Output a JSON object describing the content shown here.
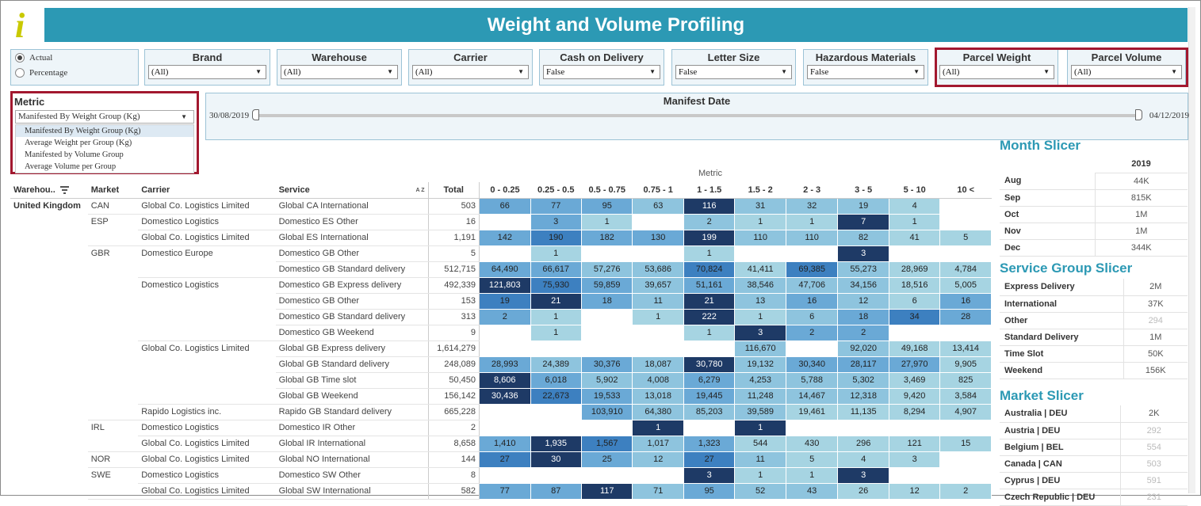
{
  "header": {
    "logo_glyph": "i",
    "title": "Weight and Volume Profiling",
    "colors": {
      "title_bar": "#2c99b4",
      "logo": "#c9c900",
      "highlight_border": "#a2182f"
    }
  },
  "measure_toggle": {
    "options": [
      "Actual",
      "Percentage"
    ],
    "selected": "Actual"
  },
  "filters": [
    {
      "label": "Brand",
      "value": "(All)"
    },
    {
      "label": "Warehouse",
      "value": "(All)"
    },
    {
      "label": "Carrier",
      "value": "(All)"
    },
    {
      "label": "Cash on Delivery",
      "value": "False"
    },
    {
      "label": "Letter Size",
      "value": "False"
    },
    {
      "label": "Hazardous Materials",
      "value": "False"
    },
    {
      "label": "Parcel Weight",
      "value": "(All)"
    },
    {
      "label": "Parcel Volume",
      "value": "(All)"
    }
  ],
  "metric": {
    "label": "Metric",
    "value": "Manifested By Weight Group (Kg)",
    "options": [
      "Manifested By Weight Group (Kg)",
      "Average Weight per Group (Kg)",
      "Manifested by Volume Group",
      "Average Volume per Group"
    ]
  },
  "manifest_date": {
    "label": "Manifest Date",
    "start": "30/08/2019",
    "end": "04/12/2019"
  },
  "matrix": {
    "metric_label": "Metric",
    "columns": {
      "warehouse": "Warehou..",
      "market": "Market",
      "carrier": "Carrier",
      "service": "Service",
      "sort_az": "A Z",
      "total": "Total",
      "groups": [
        "0 - 0.25",
        "0.25 - 0.5",
        "0.5 - 0.75",
        "0.75 - 1",
        "1 - 1.5",
        "1.5 - 2",
        "2 - 3",
        "3 - 5",
        "5 - 10",
        "10 <"
      ]
    },
    "warehouse": "United Kingdom",
    "rows": [
      {
        "market": "CAN",
        "carrier": "Global Co. Logistics Limited",
        "service": "Global CA International",
        "total": "503",
        "cells": [
          "66",
          "77",
          "95",
          "63",
          "116",
          "31",
          "32",
          "19",
          "4",
          ""
        ],
        "shades": [
          3,
          3,
          3,
          2,
          5,
          2,
          2,
          2,
          1,
          0
        ]
      },
      {
        "market": "ESP",
        "carrier": "Domestico Logistics",
        "service": "Domestico ES Other",
        "total": "16",
        "cells": [
          "",
          "3",
          "1",
          "",
          "2",
          "1",
          "1",
          "7",
          "1",
          ""
        ],
        "shades": [
          0,
          3,
          1,
          0,
          2,
          1,
          1,
          5,
          1,
          0
        ]
      },
      {
        "market": "",
        "carrier": "Global Co. Logistics Limited",
        "service": "Global ES International",
        "total": "1,191",
        "cells": [
          "142",
          "190",
          "182",
          "130",
          "199",
          "110",
          "110",
          "82",
          "41",
          "5"
        ],
        "shades": [
          3,
          4,
          3,
          3,
          5,
          2,
          2,
          2,
          1,
          1
        ]
      },
      {
        "market": "GBR",
        "carrier": "Domestico Europe",
        "service": "Domestico GB Other",
        "total": "5",
        "cells": [
          "",
          "1",
          "",
          "",
          "1",
          "",
          "",
          "3",
          "",
          ""
        ],
        "shades": [
          0,
          1,
          0,
          0,
          1,
          0,
          0,
          5,
          0,
          0
        ]
      },
      {
        "market": "",
        "carrier": "",
        "service": "Domestico GB Standard delivery",
        "total": "512,715",
        "cells": [
          "64,490",
          "66,617",
          "57,276",
          "53,686",
          "70,824",
          "41,411",
          "69,385",
          "55,273",
          "28,969",
          "4,784"
        ],
        "shades": [
          3,
          3,
          2,
          2,
          4,
          1,
          4,
          2,
          1,
          1
        ]
      },
      {
        "market": "",
        "carrier": "Domestico Logistics",
        "service": "Domestico GB Express delivery",
        "total": "492,339",
        "cells": [
          "121,803",
          "75,930",
          "59,859",
          "39,657",
          "51,161",
          "38,546",
          "47,706",
          "34,156",
          "18,516",
          "5,005"
        ],
        "shades": [
          5,
          4,
          3,
          2,
          3,
          2,
          2,
          2,
          1,
          1
        ]
      },
      {
        "market": "",
        "carrier": "",
        "service": "Domestico GB Other",
        "total": "153",
        "cells": [
          "19",
          "21",
          "18",
          "11",
          "21",
          "13",
          "16",
          "12",
          "6",
          "16"
        ],
        "shades": [
          4,
          5,
          3,
          2,
          5,
          2,
          3,
          2,
          1,
          3
        ]
      },
      {
        "market": "",
        "carrier": "",
        "service": "Domestico GB Standard delivery",
        "total": "313",
        "cells": [
          "2",
          "1",
          "",
          "1",
          "222",
          "1",
          "6",
          "18",
          "34",
          "28"
        ],
        "shades": [
          3,
          1,
          0,
          1,
          5,
          1,
          2,
          3,
          4,
          3
        ]
      },
      {
        "market": "",
        "carrier": "",
        "service": "Domestico GB Weekend",
        "total": "9",
        "cells": [
          "",
          "1",
          "",
          "",
          "1",
          "3",
          "2",
          "2",
          "",
          ""
        ],
        "shades": [
          0,
          1,
          0,
          0,
          1,
          5,
          3,
          3,
          0,
          0
        ]
      },
      {
        "market": "",
        "carrier": "Global Co. Logistics Limited",
        "service": "Global GB Express delivery",
        "total": "1,614,279",
        "cells": [
          "",
          "",
          "",
          "",
          "",
          "116,670",
          "",
          "92,020",
          "49,168",
          "13,414"
        ],
        "shades": [
          0,
          0,
          0,
          0,
          0,
          2,
          0,
          2,
          1,
          1
        ]
      },
      {
        "market": "",
        "carrier": "",
        "service": "Global GB Standard delivery",
        "total": "248,089",
        "cells": [
          "28,993",
          "24,389",
          "30,376",
          "18,087",
          "30,780",
          "19,132",
          "30,340",
          "28,117",
          "27,970",
          "9,905"
        ],
        "shades": [
          3,
          2,
          3,
          2,
          5,
          2,
          3,
          3,
          3,
          1
        ]
      },
      {
        "market": "",
        "carrier": "",
        "service": "Global GB Time slot",
        "total": "50,450",
        "cells": [
          "8,606",
          "6,018",
          "5,902",
          "4,008",
          "6,279",
          "4,253",
          "5,788",
          "5,302",
          "3,469",
          "825"
        ],
        "shades": [
          5,
          3,
          2,
          2,
          3,
          2,
          2,
          2,
          1,
          1
        ]
      },
      {
        "market": "",
        "carrier": "",
        "service": "Global GB Weekend",
        "total": "156,142",
        "cells": [
          "30,436",
          "22,673",
          "19,533",
          "13,018",
          "19,445",
          "11,248",
          "14,467",
          "12,318",
          "9,420",
          "3,584"
        ],
        "shades": [
          5,
          4,
          3,
          2,
          3,
          2,
          2,
          2,
          1,
          1
        ]
      },
      {
        "market": "",
        "carrier": "Rapido Logistics inc.",
        "service": "Rapido GB Standard delivery",
        "total": "665,228",
        "cells": [
          "",
          "",
          "103,910",
          "64,380",
          "85,203",
          "39,589",
          "19,461",
          "11,135",
          "8,294",
          "4,907"
        ],
        "shades": [
          0,
          0,
          3,
          2,
          2,
          2,
          1,
          1,
          1,
          1
        ]
      },
      {
        "market": "IRL",
        "carrier": "Domestico Logistics",
        "service": "Domestico IR Other",
        "total": "2",
        "cells": [
          "",
          "",
          "",
          "1",
          "",
          "1",
          "",
          "",
          "",
          ""
        ],
        "shades": [
          0,
          0,
          0,
          5,
          0,
          5,
          0,
          0,
          0,
          0
        ]
      },
      {
        "market": "",
        "carrier": "Global Co. Logistics Limited",
        "service": "Global IR International",
        "total": "8,658",
        "cells": [
          "1,410",
          "1,935",
          "1,567",
          "1,017",
          "1,323",
          "544",
          "430",
          "296",
          "121",
          "15"
        ],
        "shades": [
          3,
          5,
          4,
          2,
          3,
          1,
          1,
          1,
          1,
          1
        ]
      },
      {
        "market": "NOR",
        "carrier": "Global Co. Logistics Limited",
        "service": "Global NO International",
        "total": "144",
        "cells": [
          "27",
          "30",
          "25",
          "12",
          "27",
          "11",
          "5",
          "4",
          "3",
          ""
        ],
        "shades": [
          4,
          5,
          3,
          2,
          4,
          2,
          1,
          1,
          1,
          0
        ]
      },
      {
        "market": "SWE",
        "carrier": "Domestico Logistics",
        "service": "Domestico SW Other",
        "total": "8",
        "cells": [
          "",
          "",
          "",
          "",
          "3",
          "1",
          "1",
          "3",
          "",
          ""
        ],
        "shades": [
          0,
          0,
          0,
          0,
          5,
          1,
          1,
          5,
          0,
          0
        ]
      },
      {
        "market": "",
        "carrier": "Global Co. Logistics Limited",
        "service": "Global SW International",
        "total": "582",
        "cells": [
          "77",
          "87",
          "117",
          "71",
          "95",
          "52",
          "43",
          "26",
          "12",
          "2"
        ],
        "shades": [
          3,
          3,
          5,
          2,
          3,
          2,
          2,
          1,
          1,
          1
        ]
      }
    ]
  },
  "month_slicer": {
    "title": "Month Slicer",
    "year": "2019",
    "rows": [
      {
        "k": "Aug",
        "v": "44K"
      },
      {
        "k": "Sep",
        "v": "815K"
      },
      {
        "k": "Oct",
        "v": "1M"
      },
      {
        "k": "Nov",
        "v": "1M"
      },
      {
        "k": "Dec",
        "v": "344K"
      }
    ]
  },
  "service_group_slicer": {
    "title": "Service Group Slicer",
    "rows": [
      {
        "k": "Express Delivery",
        "v": "2M"
      },
      {
        "k": "International",
        "v": "37K"
      },
      {
        "k": "Other",
        "v": "294",
        "dim": true
      },
      {
        "k": "Standard Delivery",
        "v": "1M"
      },
      {
        "k": "Time Slot",
        "v": "50K"
      },
      {
        "k": "Weekend",
        "v": "156K"
      }
    ]
  },
  "market_slicer": {
    "title": "Market Slicer",
    "rows": [
      {
        "k": "Australia | DEU",
        "v": "2K"
      },
      {
        "k": "Austria | DEU",
        "v": "292",
        "dim": true
      },
      {
        "k": "Belgium | BEL",
        "v": "554",
        "dim": true
      },
      {
        "k": "Canada | CAN",
        "v": "503",
        "dim": true
      },
      {
        "k": "Cyprus | DEU",
        "v": "591",
        "dim": true
      },
      {
        "k": "Czech Republic | DEU",
        "v": "231",
        "dim": true
      }
    ]
  },
  "heat_colors": [
    "transparent",
    "#a6d4e2",
    "#8ec4de",
    "#6aa9d6",
    "#3d80c0",
    "#1e3a66"
  ]
}
